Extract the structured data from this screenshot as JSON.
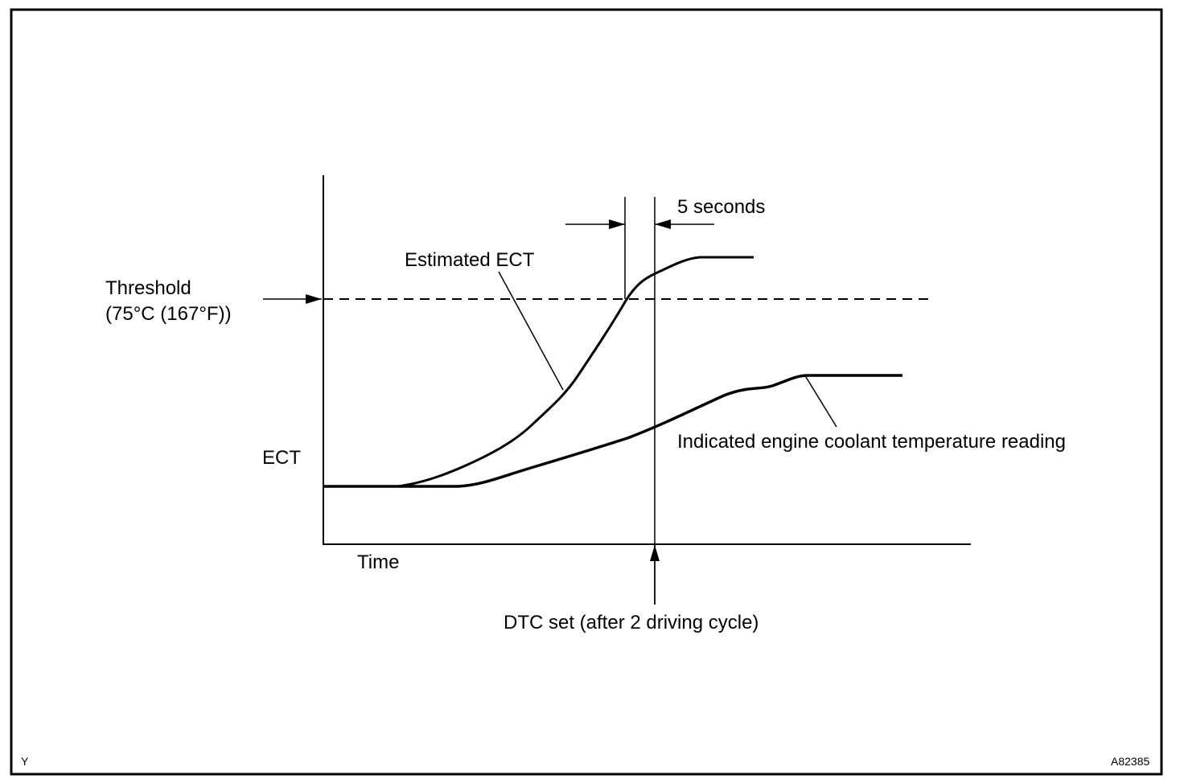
{
  "labels": {
    "five_seconds": "5 seconds",
    "estimated_ect": "Estimated ECT",
    "threshold": "Threshold",
    "threshold_value": "(75°C (167°F))",
    "y_axis": "ECT",
    "x_axis": "Time",
    "dtc_set": "DTC set (after 2 driving cycle)",
    "indicated": "Indicated engine coolant temperature reading",
    "corner_left": "Y",
    "figure_id": "A82385"
  }
}
